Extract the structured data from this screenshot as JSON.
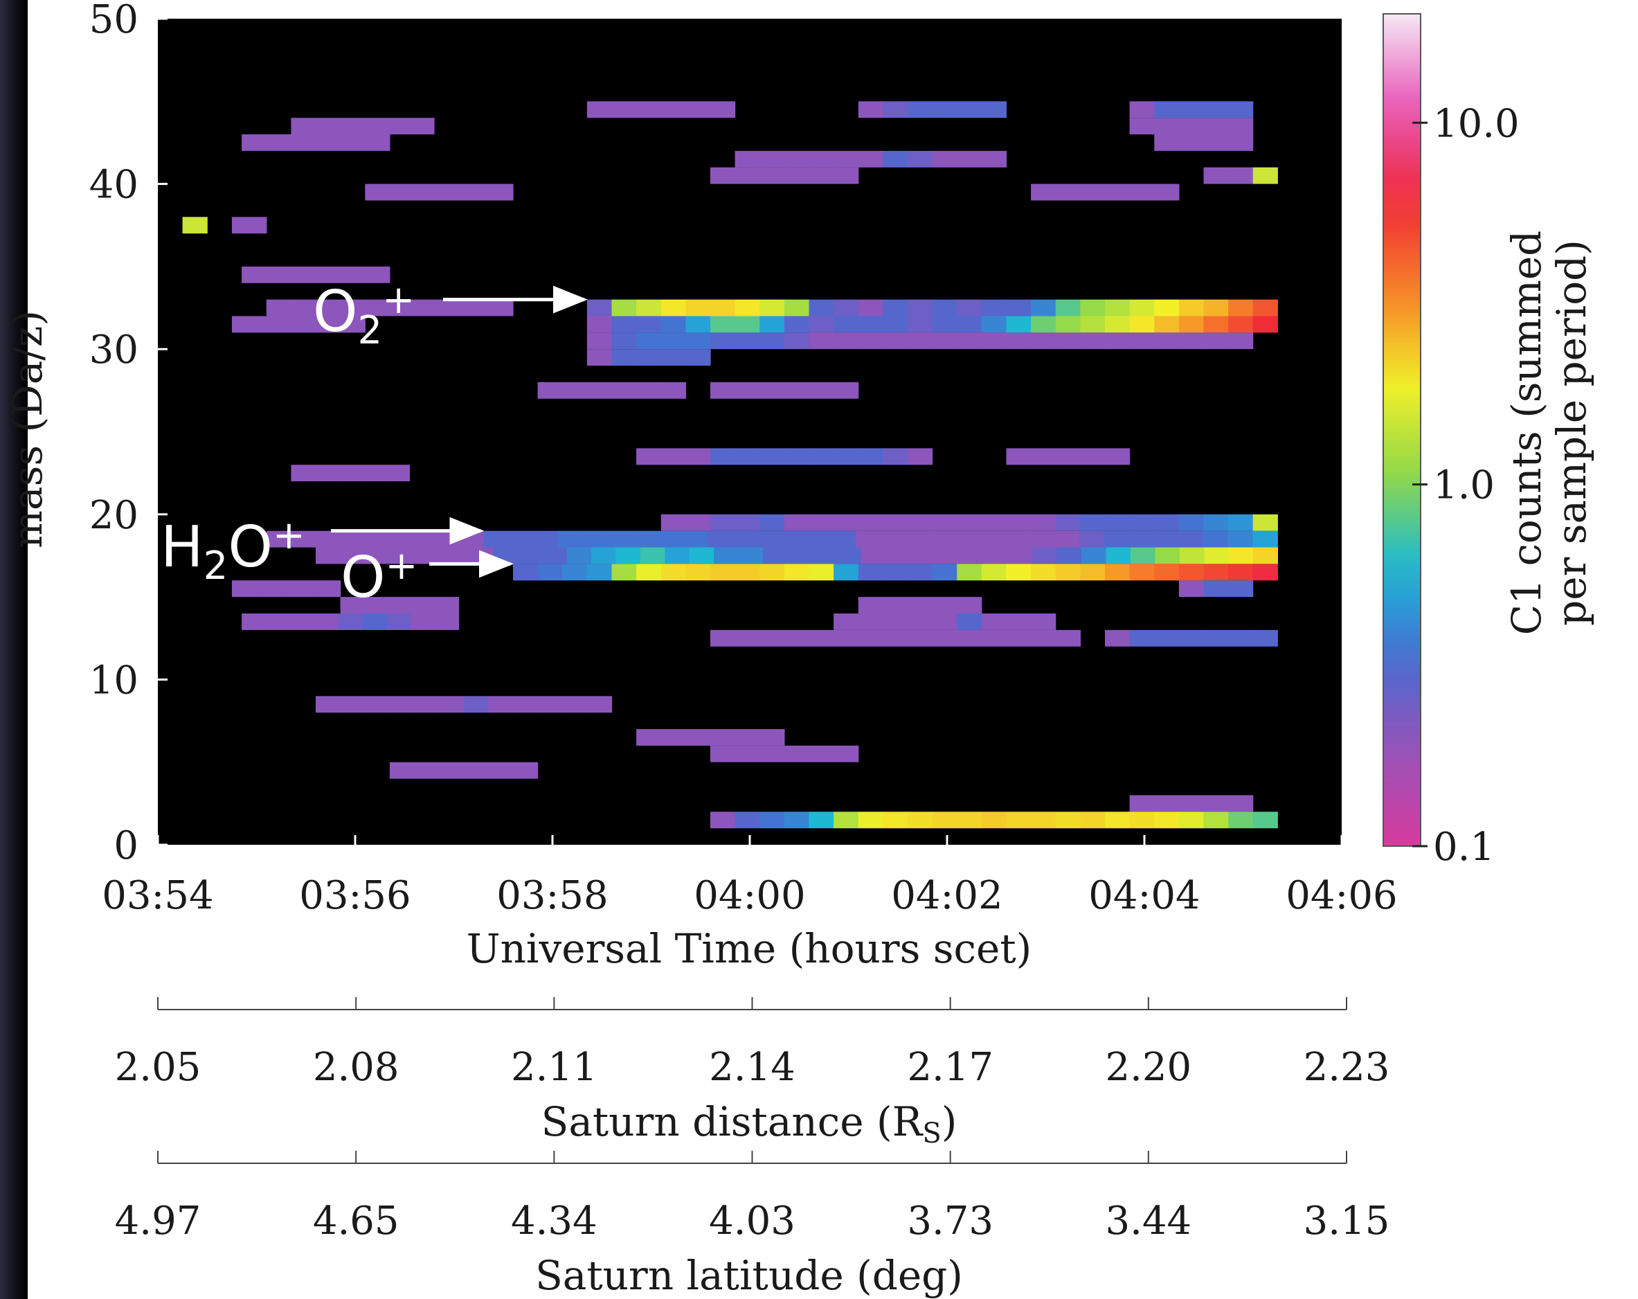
{
  "chart_data": {
    "type": "heatmap",
    "title": "",
    "xlabel": "Universal Time (hours scet)",
    "ylabel": "mass (Da/z)",
    "x_tick_labels": [
      "03:54",
      "03:56",
      "03:58",
      "04:00",
      "04:02",
      "04:04",
      "04:06"
    ],
    "x_ticks_hours": [
      0,
      2,
      4,
      6,
      8,
      10,
      12
    ],
    "xlim_hours_after_0354": [
      0,
      12
    ],
    "y_ticks": [
      0,
      10,
      20,
      30,
      40,
      50
    ],
    "ylim": [
      0,
      50
    ],
    "colorbar": {
      "label_line1": "C1 counts (summed",
      "label_line2": "per sample period)",
      "scale": "log",
      "range": [
        0.1,
        20
      ],
      "tick_values": [
        0.1,
        1.0,
        10.0
      ],
      "tick_labels": [
        "0.1",
        "1.0",
        "10.0"
      ],
      "colors": [
        "#d73a9c",
        "#9a52b8",
        "#4a6ad0",
        "#18b8d8",
        "#8ed84a",
        "#f4f028",
        "#f58028",
        "#f02838",
        "#e858b8",
        "#f5e8f5"
      ]
    },
    "secondary_axes": [
      {
        "label_main": "Saturn distance (R",
        "label_sub": "S",
        "label_end": ")",
        "tick_labels": [
          "2.05",
          "2.08",
          "2.11",
          "2.14",
          "2.17",
          "2.20",
          "2.23"
        ]
      },
      {
        "label_main": "Saturn latitude (deg)",
        "label_sub": "",
        "label_end": "",
        "tick_labels": [
          "4.97",
          "4.65",
          "4.34",
          "4.03",
          "3.73",
          "3.44",
          "3.15"
        ]
      }
    ],
    "annotations": [
      {
        "label_main": "O",
        "label_sub": "2",
        "label_sup": "+",
        "mass": 33,
        "arrow_to_hour": 4.35
      },
      {
        "label_main": "H",
        "label_sub": "2",
        "label_rest": "O",
        "label_sup": "+",
        "mass": 19,
        "arrow_to_hour": 3.3
      },
      {
        "label_main": "O",
        "label_sub": "",
        "label_sup": "+",
        "mass": 17,
        "arrow_to_hour": 3.6
      }
    ],
    "bin_width_hours": 0.25,
    "bin_height_mass": 1,
    "segments": [
      {
        "mass": 37.5,
        "start": 0.25,
        "end": 0.5,
        "levels": [
          1.5
        ]
      },
      {
        "mass": 37.5,
        "start": 0.75,
        "end": 1.1,
        "levels": [
          0.2
        ]
      },
      {
        "mass": 39.5,
        "start": 2.1,
        "end": 3.6,
        "levels": [
          0.2
        ]
      },
      {
        "mass": 43.5,
        "start": 1.35,
        "end": 2.8,
        "levels": [
          0.2
        ]
      },
      {
        "mass": 42.5,
        "start": 0.85,
        "end": 2.35,
        "levels": [
          0.2
        ]
      },
      {
        "mass": 34.5,
        "start": 0.85,
        "end": 2.35,
        "levels": [
          0.2
        ]
      },
      {
        "mass": 32.5,
        "start": 1.1,
        "end": 3.6,
        "levels": [
          0.2
        ]
      },
      {
        "mass": 31.5,
        "start": 0.75,
        "end": 2.1,
        "levels": [
          0.2
        ]
      },
      {
        "mass": 22.5,
        "start": 1.35,
        "end": 2.55,
        "levels": [
          0.2
        ]
      },
      {
        "mass": 18.5,
        "start": 1.1,
        "end": 3.3,
        "levels": [
          0.2
        ]
      },
      {
        "mass": 17.5,
        "start": 1.6,
        "end": 3.4,
        "levels": [
          0.2
        ]
      },
      {
        "mass": 15.5,
        "start": 0.75,
        "end": 1.85,
        "levels": [
          0.2
        ]
      },
      {
        "mass": 14.5,
        "start": 1.85,
        "end": 3.05,
        "levels": [
          0.2
        ]
      },
      {
        "mass": 13.5,
        "start": 0.85,
        "end": 3.05,
        "levels": [
          0.2,
          0.2,
          0.2,
          0.2,
          0.25,
          0.3,
          0.25,
          0.2,
          0.2
        ]
      },
      {
        "mass": 8.5,
        "start": 1.6,
        "end": 4.6,
        "levels": [
          0.2,
          0.2,
          0.2,
          0.2,
          0.2,
          0.2,
          0.25,
          0.2,
          0.2,
          0.2,
          0.2,
          0.2
        ]
      },
      {
        "mass": 4.5,
        "start": 2.35,
        "end": 3.85,
        "levels": [
          0.2
        ]
      },
      {
        "mass": 6.5,
        "start": 4.85,
        "end": 6.35,
        "levels": [
          0.2
        ]
      },
      {
        "mass": 5.5,
        "start": 5.6,
        "end": 7.1,
        "levels": [
          0.2
        ]
      },
      {
        "mass": 44.5,
        "start": 4.35,
        "end": 5.85,
        "levels": [
          0.2
        ]
      },
      {
        "mass": 44.5,
        "start": 7.1,
        "end": 8.6,
        "levels": [
          0.2,
          0.25,
          0.3,
          0.3,
          0.3,
          0.3,
          0.3,
          0.25
        ]
      },
      {
        "mass": 44.5,
        "start": 9.85,
        "end": 11.1,
        "levels": [
          0.2,
          0.3,
          0.3,
          0.3,
          0.3,
          0.3
        ]
      },
      {
        "mass": 43.5,
        "start": 9.85,
        "end": 11.1,
        "levels": [
          0.2
        ]
      },
      {
        "mass": 42.5,
        "start": 10.1,
        "end": 11.1,
        "levels": [
          0.2
        ]
      },
      {
        "mass": 41.5,
        "start": 5.85,
        "end": 8.6,
        "levels": [
          0.2,
          0.2,
          0.2,
          0.2,
          0.2,
          0.2,
          0.3,
          0.25,
          0.2,
          0.2,
          0.2
        ]
      },
      {
        "mass": 40.5,
        "start": 5.6,
        "end": 7.1,
        "levels": [
          0.2
        ]
      },
      {
        "mass": 40.5,
        "start": 10.6,
        "end": 11.35,
        "levels": [
          0.2,
          0.2,
          1.5
        ]
      },
      {
        "mass": 39.5,
        "start": 8.85,
        "end": 10.35,
        "levels": [
          0.2
        ]
      },
      {
        "mass": 32.5,
        "start": 4.35,
        "end": 11.35,
        "levels": [
          0.25,
          1.2,
          1.5,
          2.0,
          2.2,
          2.2,
          2.0,
          1.6,
          1.2,
          0.3,
          0.25,
          0.2,
          0.3,
          0.25,
          0.3,
          0.25,
          0.3,
          0.3,
          0.4,
          0.8,
          1.1,
          1.3,
          1.6,
          1.9,
          2.3,
          2.6,
          3.5,
          4.5,
          5.5,
          7.0,
          11,
          13,
          14,
          15,
          16,
          16,
          16,
          16
        ]
      },
      {
        "mass": 31.5,
        "start": 4.35,
        "end": 11.35,
        "levels": [
          0.2,
          0.3,
          0.3,
          0.35,
          0.5,
          0.8,
          0.8,
          0.5,
          0.3,
          0.25,
          0.3,
          0.3,
          0.3,
          0.25,
          0.3,
          0.3,
          0.4,
          0.6,
          0.9,
          1.1,
          1.3,
          1.6,
          2.0,
          2.5,
          3.0,
          3.8,
          4.8,
          6.0,
          8.0,
          9.5,
          10,
          10,
          11,
          12,
          12,
          11,
          10
        ]
      },
      {
        "mass": 30.5,
        "start": 4.35,
        "end": 11.1,
        "levels": [
          0.2,
          0.3,
          0.35,
          0.35,
          0.35,
          0.3,
          0.3,
          0.3,
          0.25,
          0.2,
          0.2,
          0.2,
          0.2,
          0.2,
          0.2,
          0.2,
          0.2,
          0.2,
          0.2,
          0.2,
          0.2,
          0.2,
          0.2,
          0.2,
          0.2,
          0.2,
          0.2,
          0.2,
          0.2,
          0.2,
          0.2,
          0.25,
          0.3,
          0.3,
          0.3,
          0.3
        ]
      },
      {
        "mass": 29.5,
        "start": 4.35,
        "end": 5.6,
        "levels": [
          0.2,
          0.3,
          0.3,
          0.3,
          0.3,
          0.25
        ]
      },
      {
        "mass": 27.5,
        "start": 3.85,
        "end": 5.35,
        "levels": [
          0.2
        ]
      },
      {
        "mass": 27.5,
        "start": 5.6,
        "end": 7.1,
        "levels": [
          0.2
        ]
      },
      {
        "mass": 23.5,
        "start": 4.85,
        "end": 7.85,
        "levels": [
          0.2,
          0.2,
          0.2,
          0.3,
          0.3,
          0.3,
          0.3,
          0.3,
          0.3,
          0.3,
          0.25,
          0.2
        ]
      },
      {
        "mass": 23.5,
        "start": 8.6,
        "end": 9.85,
        "levels": [
          0.2
        ]
      },
      {
        "mass": 19.5,
        "start": 5.1,
        "end": 11.35,
        "levels": [
          0.2,
          0.2,
          0.25,
          0.25,
          0.3,
          0.2,
          0.2,
          0.2,
          0.2,
          0.2,
          0.2,
          0.2,
          0.2,
          0.2,
          0.2,
          0.2,
          0.25,
          0.3,
          0.3,
          0.3,
          0.3,
          0.35,
          0.4,
          0.45,
          1.5
        ]
      },
      {
        "mass": 18.5,
        "start": 3.3,
        "end": 11.35,
        "levels": [
          0.3,
          0.3,
          0.3,
          0.35,
          0.35,
          0.35,
          0.35,
          0.35,
          0.35,
          0.3,
          0.3,
          0.3,
          0.3,
          0.3,
          0.3,
          0.2,
          0.2,
          0.2,
          0.2,
          0.2,
          0.2,
          0.2,
          0.2,
          0.2,
          0.25,
          0.3,
          0.3,
          0.3,
          0.3,
          0.35,
          0.4,
          0.5,
          0.6,
          0.8
        ]
      },
      {
        "mass": 17.5,
        "start": 3.4,
        "end": 11.35,
        "levels": [
          0.3,
          0.3,
          0.3,
          0.4,
          0.5,
          0.6,
          0.7,
          0.5,
          0.6,
          0.4,
          0.4,
          0.3,
          0.3,
          0.3,
          0.3,
          0.2,
          0.2,
          0.2,
          0.2,
          0.2,
          0.2,
          0.2,
          0.25,
          0.3,
          0.4,
          0.6,
          0.8,
          1.1,
          1.4,
          1.7,
          2.0,
          2.2,
          2.3,
          2.0
        ]
      },
      {
        "mass": 16.5,
        "start": 3.6,
        "end": 11.35,
        "levels": [
          0.3,
          0.35,
          0.4,
          0.45,
          1.2,
          1.8,
          2.1,
          2.2,
          2.3,
          2.3,
          2.2,
          2.0,
          1.8,
          0.5,
          0.3,
          0.3,
          0.3,
          0.35,
          1.2,
          1.6,
          1.9,
          2.1,
          2.3,
          2.5,
          3.0,
          3.5,
          4.0,
          4.5,
          5.0,
          5.5,
          6.5,
          7.5,
          8.0,
          7.5
        ]
      },
      {
        "mass": 15.5,
        "start": 10.35,
        "end": 11.1,
        "levels": [
          0.2,
          0.3,
          0.3
        ]
      },
      {
        "mass": 14.5,
        "start": 7.1,
        "end": 8.35,
        "levels": [
          0.2
        ]
      },
      {
        "mass": 13.5,
        "start": 6.85,
        "end": 9.1,
        "levels": [
          0.2,
          0.2,
          0.2,
          0.2,
          0.2,
          0.3,
          0.2,
          0.2,
          0.2
        ]
      },
      {
        "mass": 12.5,
        "start": 5.6,
        "end": 9.35,
        "levels": [
          0.2
        ]
      },
      {
        "mass": 12.5,
        "start": 9.6,
        "end": 11.35,
        "levels": [
          0.2,
          0.3,
          0.3,
          0.3,
          0.3,
          0.3,
          0.3
        ]
      },
      {
        "mass": 2.5,
        "start": 9.85,
        "end": 11.1,
        "levels": [
          0.2
        ]
      },
      {
        "mass": 1.5,
        "start": 5.6,
        "end": 11.35,
        "levels": [
          0.2,
          0.3,
          0.35,
          0.4,
          0.6,
          1.3,
          1.8,
          2.0,
          2.1,
          2.2,
          2.2,
          2.3,
          2.2,
          2.2,
          2.1,
          2.2,
          2.0,
          2.1,
          2.0,
          1.7,
          1.3,
          0.9,
          0.8,
          1.5
        ]
      }
    ]
  }
}
